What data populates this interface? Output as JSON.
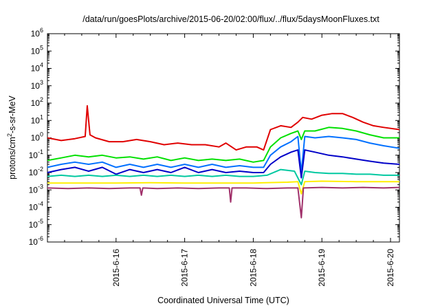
{
  "chart_data": {
    "type": "line",
    "title": "/data/run/goesPlots/archive/2015-06-20/02:00/flux/../flux/5daysMoonFluxes.txt",
    "xlabel": "Coordinated Universal Time (UTC)",
    "ylabel_parts": [
      "protons/cm",
      "2",
      "-s-sr-MeV"
    ],
    "x_range_days": [
      15.0,
      20.13
    ],
    "y_scale": "log",
    "ylim": [
      1e-06,
      1000000.0
    ],
    "y_ticks": [
      {
        "base": "10",
        "exp": "-6",
        "value": 1e-06
      },
      {
        "base": "10",
        "exp": "-5",
        "value": 1e-05
      },
      {
        "base": "10",
        "exp": "-4",
        "value": 0.0001
      },
      {
        "base": "10",
        "exp": "-3",
        "value": 0.001
      },
      {
        "base": "10",
        "exp": "-2",
        "value": 0.01
      },
      {
        "base": "10",
        "exp": "-1",
        "value": 0.1
      },
      {
        "base": "10",
        "exp": "0",
        "value": 1
      },
      {
        "base": "10",
        "exp": "1",
        "value": 10
      },
      {
        "base": "10",
        "exp": "2",
        "value": 100
      },
      {
        "base": "10",
        "exp": "3",
        "value": 1000
      },
      {
        "base": "10",
        "exp": "4",
        "value": 10000
      },
      {
        "base": "10",
        "exp": "5",
        "value": 100000
      },
      {
        "base": "10",
        "exp": "6",
        "value": 1000000
      }
    ],
    "x_ticks": [
      {
        "label": "2015-6-16",
        "day": 16
      },
      {
        "label": "2015-6-17",
        "day": 17
      },
      {
        "label": "2015-6-18",
        "day": 18
      },
      {
        "label": "2015-6-19",
        "day": 19
      },
      {
        "label": "2015-6-20",
        "day": 20
      }
    ],
    "series": [
      {
        "color": "#e00000",
        "points": [
          [
            15.0,
            1.0
          ],
          [
            15.2,
            0.7
          ],
          [
            15.4,
            0.9
          ],
          [
            15.55,
            1.2
          ],
          [
            15.58,
            70
          ],
          [
            15.62,
            1.5
          ],
          [
            15.7,
            1.0
          ],
          [
            15.9,
            0.6
          ],
          [
            16.1,
            0.6
          ],
          [
            16.3,
            0.8
          ],
          [
            16.5,
            0.6
          ],
          [
            16.7,
            0.4
          ],
          [
            16.9,
            0.5
          ],
          [
            17.1,
            0.4
          ],
          [
            17.3,
            0.4
          ],
          [
            17.5,
            0.3
          ],
          [
            17.6,
            0.5
          ],
          [
            17.75,
            0.2
          ],
          [
            17.9,
            0.3
          ],
          [
            18.05,
            0.3
          ],
          [
            18.15,
            0.2
          ],
          [
            18.25,
            3
          ],
          [
            18.4,
            5
          ],
          [
            18.55,
            4
          ],
          [
            18.65,
            8
          ],
          [
            18.72,
            15
          ],
          [
            18.85,
            12
          ],
          [
            19.0,
            20
          ],
          [
            19.15,
            25
          ],
          [
            19.3,
            25
          ],
          [
            19.45,
            15
          ],
          [
            19.6,
            8
          ],
          [
            19.75,
            5
          ],
          [
            19.9,
            4
          ],
          [
            20.13,
            3
          ]
        ]
      },
      {
        "color": "#00e000",
        "points": [
          [
            15.0,
            0.05
          ],
          [
            15.2,
            0.07
          ],
          [
            15.4,
            0.1
          ],
          [
            15.6,
            0.08
          ],
          [
            15.8,
            0.1
          ],
          [
            16.0,
            0.07
          ],
          [
            16.2,
            0.08
          ],
          [
            16.4,
            0.06
          ],
          [
            16.6,
            0.08
          ],
          [
            16.8,
            0.05
          ],
          [
            17.0,
            0.07
          ],
          [
            17.2,
            0.05
          ],
          [
            17.4,
            0.06
          ],
          [
            17.6,
            0.05
          ],
          [
            17.8,
            0.06
          ],
          [
            18.0,
            0.04
          ],
          [
            18.15,
            0.05
          ],
          [
            18.25,
            0.3
          ],
          [
            18.4,
            1.0
          ],
          [
            18.55,
            1.8
          ],
          [
            18.65,
            2.5
          ],
          [
            18.7,
            0.8
          ],
          [
            18.75,
            2.5
          ],
          [
            18.9,
            2.5
          ],
          [
            19.1,
            4
          ],
          [
            19.3,
            3.5
          ],
          [
            19.5,
            2.5
          ],
          [
            19.7,
            1.5
          ],
          [
            19.9,
            1.0
          ],
          [
            20.13,
            1.0
          ]
        ]
      },
      {
        "color": "#0070ff",
        "points": [
          [
            15.0,
            0.02
          ],
          [
            15.2,
            0.03
          ],
          [
            15.4,
            0.04
          ],
          [
            15.6,
            0.03
          ],
          [
            15.8,
            0.04
          ],
          [
            16.0,
            0.02
          ],
          [
            16.2,
            0.03
          ],
          [
            16.4,
            0.02
          ],
          [
            16.6,
            0.03
          ],
          [
            16.8,
            0.02
          ],
          [
            17.0,
            0.03
          ],
          [
            17.2,
            0.02
          ],
          [
            17.4,
            0.03
          ],
          [
            17.6,
            0.02
          ],
          [
            17.8,
            0.025
          ],
          [
            18.0,
            0.02
          ],
          [
            18.15,
            0.02
          ],
          [
            18.25,
            0.1
          ],
          [
            18.4,
            0.3
          ],
          [
            18.55,
            0.6
          ],
          [
            18.65,
            1.2
          ],
          [
            18.7,
            0.01
          ],
          [
            18.75,
            1.2
          ],
          [
            18.9,
            1.0
          ],
          [
            19.1,
            1.2
          ],
          [
            19.3,
            1.0
          ],
          [
            19.5,
            0.8
          ],
          [
            19.7,
            0.5
          ],
          [
            19.9,
            0.35
          ],
          [
            20.13,
            0.25
          ]
        ]
      },
      {
        "color": "#0000c8",
        "points": [
          [
            15.0,
            0.01
          ],
          [
            15.2,
            0.015
          ],
          [
            15.4,
            0.02
          ],
          [
            15.6,
            0.012
          ],
          [
            15.8,
            0.02
          ],
          [
            16.0,
            0.008
          ],
          [
            16.2,
            0.015
          ],
          [
            16.4,
            0.01
          ],
          [
            16.6,
            0.015
          ],
          [
            16.8,
            0.01
          ],
          [
            17.0,
            0.02
          ],
          [
            17.2,
            0.01
          ],
          [
            17.4,
            0.015
          ],
          [
            17.6,
            0.01
          ],
          [
            17.8,
            0.012
          ],
          [
            18.0,
            0.01
          ],
          [
            18.15,
            0.01
          ],
          [
            18.25,
            0.03
          ],
          [
            18.4,
            0.08
          ],
          [
            18.55,
            0.15
          ],
          [
            18.65,
            0.2
          ],
          [
            18.7,
            0.005
          ],
          [
            18.75,
            0.2
          ],
          [
            18.9,
            0.15
          ],
          [
            19.1,
            0.1
          ],
          [
            19.3,
            0.08
          ],
          [
            19.5,
            0.06
          ],
          [
            19.7,
            0.045
          ],
          [
            19.9,
            0.035
          ],
          [
            20.13,
            0.03
          ]
        ]
      },
      {
        "color": "#00c8a0",
        "points": [
          [
            15.0,
            0.006
          ],
          [
            15.2,
            0.007
          ],
          [
            15.4,
            0.006
          ],
          [
            15.6,
            0.007
          ],
          [
            15.8,
            0.006
          ],
          [
            16.0,
            0.007
          ],
          [
            16.2,
            0.006
          ],
          [
            16.4,
            0.007
          ],
          [
            16.6,
            0.006
          ],
          [
            16.8,
            0.007
          ],
          [
            17.0,
            0.006
          ],
          [
            17.2,
            0.007
          ],
          [
            17.4,
            0.006
          ],
          [
            17.6,
            0.007
          ],
          [
            17.8,
            0.006
          ],
          [
            18.0,
            0.006
          ],
          [
            18.2,
            0.007
          ],
          [
            18.4,
            0.015
          ],
          [
            18.6,
            0.012
          ],
          [
            18.7,
            0.002
          ],
          [
            18.75,
            0.012
          ],
          [
            18.9,
            0.01
          ],
          [
            19.1,
            0.009
          ],
          [
            19.3,
            0.009
          ],
          [
            19.5,
            0.008
          ],
          [
            19.7,
            0.008
          ],
          [
            19.9,
            0.007
          ],
          [
            20.13,
            0.007
          ]
        ]
      },
      {
        "color": "#ffee00",
        "points": [
          [
            15.0,
            0.0025
          ],
          [
            15.5,
            0.0025
          ],
          [
            16.0,
            0.0025
          ],
          [
            16.5,
            0.0026
          ],
          [
            17.0,
            0.0025
          ],
          [
            17.5,
            0.0025
          ],
          [
            18.0,
            0.0025
          ],
          [
            18.5,
            0.0028
          ],
          [
            18.65,
            0.003
          ],
          [
            18.7,
            0.0006
          ],
          [
            18.75,
            0.003
          ],
          [
            19.0,
            0.0032
          ],
          [
            19.5,
            0.003
          ],
          [
            20.0,
            0.003
          ],
          [
            20.13,
            0.003
          ]
        ]
      },
      {
        "color": "#a0306a",
        "points": [
          [
            15.0,
            0.0013
          ],
          [
            15.3,
            0.0012
          ],
          [
            15.6,
            0.0013
          ],
          [
            15.9,
            0.0012
          ],
          [
            16.2,
            0.0013
          ],
          [
            16.35,
            0.0013
          ],
          [
            16.37,
            0.0005
          ],
          [
            16.39,
            0.0013
          ],
          [
            16.6,
            0.0012
          ],
          [
            16.9,
            0.0013
          ],
          [
            17.2,
            0.0012
          ],
          [
            17.5,
            0.0013
          ],
          [
            17.65,
            0.0013
          ],
          [
            17.67,
            0.0002
          ],
          [
            17.69,
            0.0013
          ],
          [
            17.9,
            0.0013
          ],
          [
            18.2,
            0.0012
          ],
          [
            18.5,
            0.0013
          ],
          [
            18.65,
            0.0013
          ],
          [
            18.7,
            2.5e-05
          ],
          [
            18.73,
            0.0013
          ],
          [
            19.0,
            0.0014
          ],
          [
            19.3,
            0.0013
          ],
          [
            19.6,
            0.0014
          ],
          [
            19.9,
            0.0013
          ],
          [
            20.13,
            0.0014
          ]
        ]
      }
    ]
  }
}
